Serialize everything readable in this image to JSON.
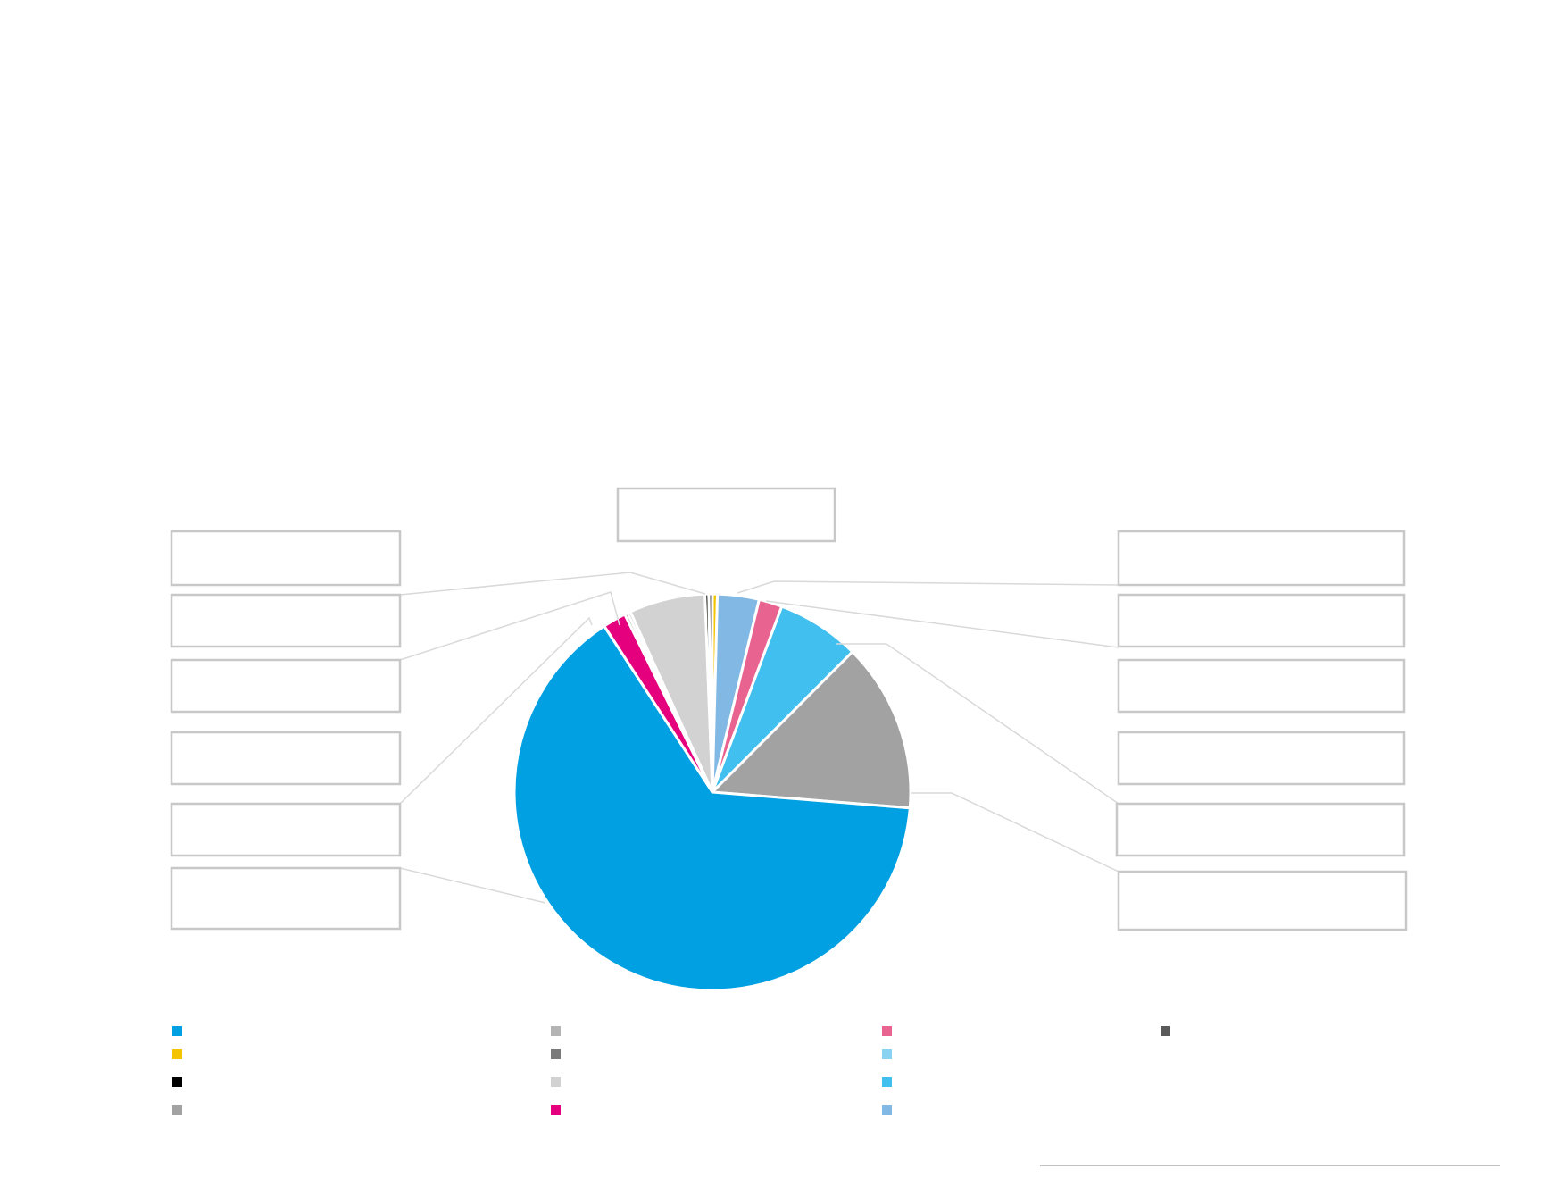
{
  "chart_data": {
    "type": "pie",
    "title": "",
    "legend_position": "bottom",
    "series": [
      {
        "value": 0.4,
        "color": "#f5c400"
      },
      {
        "value": 3.4,
        "color": "#82b9e4"
      },
      {
        "value": 1.9,
        "color": "#e8638f"
      },
      {
        "value": 6.8,
        "color": "#41bfee"
      },
      {
        "value": 13.8,
        "color": "#a2a2a2"
      },
      {
        "value": 64.6,
        "color": "#00a0e2"
      },
      {
        "value": 1.9,
        "color": "#e5007d"
      },
      {
        "value": 0.25,
        "color": "#7a7a7a"
      },
      {
        "value": 0.25,
        "color": "#b4b4b4"
      },
      {
        "value": 6.2,
        "color": "#d2d2d2"
      },
      {
        "value": 0.3,
        "color": "#111111"
      },
      {
        "value": 0.3,
        "color": "#5a5a5a"
      }
    ],
    "callouts": [
      {
        "slice": 0,
        "text": ""
      },
      {
        "slice": 1,
        "text": ""
      },
      {
        "slice": 2,
        "text": ""
      },
      {
        "slice": 3,
        "text": ""
      },
      {
        "slice": 4,
        "text": ""
      },
      {
        "slice": 5,
        "text": ""
      },
      {
        "slice": 6,
        "text": ""
      },
      {
        "slice": 7,
        "text": ""
      },
      {
        "slice": 9,
        "text": ""
      },
      {
        "slice": 10,
        "text": ""
      },
      {
        "slice": 11,
        "text": ""
      },
      {
        "slice": 11,
        "text": ""
      },
      {
        "slice": 11,
        "text": ""
      }
    ],
    "legend": [
      {
        "color": "#00a0e2",
        "text": ""
      },
      {
        "color": "#f5c400",
        "text": ""
      },
      {
        "color": "#000000",
        "text": ""
      },
      {
        "color": "#a2a2a2",
        "text": ""
      },
      {
        "color": "#b4b4b4",
        "text": ""
      },
      {
        "color": "#7a7a7a",
        "text": ""
      },
      {
        "color": "#d2d2d2",
        "text": ""
      },
      {
        "color": "#e5007d",
        "text": ""
      },
      {
        "color": "#e8638f",
        "text": ""
      },
      {
        "color": "#8ad2f2",
        "text": ""
      },
      {
        "color": "#41bfee",
        "text": ""
      },
      {
        "color": "#82b9e4",
        "text": ""
      },
      {
        "color": "#5a5a5a",
        "text": ""
      }
    ],
    "footnote": ""
  }
}
